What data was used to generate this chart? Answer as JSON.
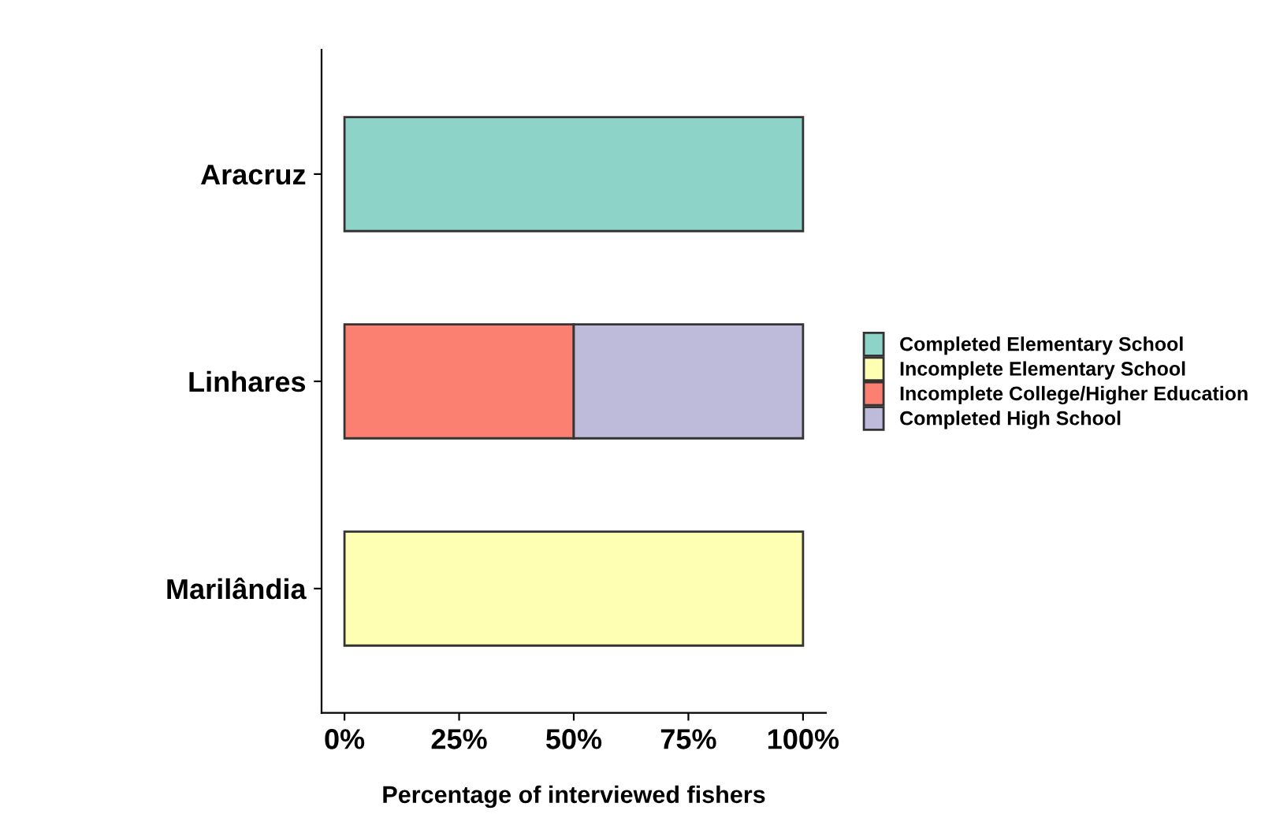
{
  "chart_data": {
    "type": "bar",
    "orientation": "horizontal",
    "stacked": true,
    "categories": [
      "Aracruz",
      "Linhares",
      "Marilândia"
    ],
    "series": [
      {
        "name": "Completed Elementary School",
        "color": "#8dd3c7",
        "values": [
          100,
          null,
          null
        ]
      },
      {
        "name": "Incomplete Elementary School",
        "color": "#ffffb3",
        "values": [
          null,
          null,
          100
        ]
      },
      {
        "name": "Incomplete College/Higher Education",
        "color": "#fb8072",
        "values": [
          null,
          50,
          null
        ]
      },
      {
        "name": "Completed High School",
        "color": "#bebada",
        "values": [
          null,
          50,
          null
        ]
      }
    ],
    "xlabel": "Percentage of interviewed fishers",
    "xlim": [
      -5,
      105
    ],
    "xticks": [
      {
        "value": 0,
        "label": "0%"
      },
      {
        "value": 25,
        "label": "25%"
      },
      {
        "value": 50,
        "label": "50%"
      },
      {
        "value": 75,
        "label": "75%"
      },
      {
        "value": 100,
        "label": "100%"
      }
    ],
    "grid": false,
    "legend": "right"
  }
}
